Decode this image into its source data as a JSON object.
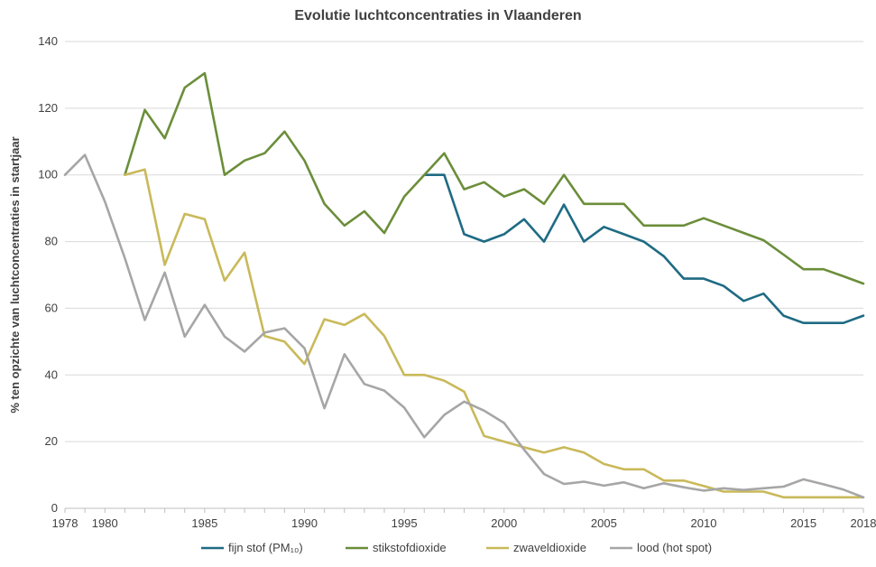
{
  "chart_data": {
    "type": "line",
    "title": "Evolutie luchtconcentraties in Vlaanderen",
    "ylabel": "% ten opzichte van luchtconcentraties in startjaar",
    "xlabel": "",
    "xlim": [
      1978,
      2018
    ],
    "ylim": [
      0,
      140
    ],
    "y_ticks": [
      0,
      20,
      40,
      60,
      80,
      100,
      120,
      140
    ],
    "x_ticks": [
      "1978",
      "1980",
      "1985",
      "1990",
      "1995",
      "2000",
      "2005",
      "2010",
      "2015",
      "2018"
    ],
    "grid": "horizontal",
    "legend_position": "bottom",
    "series": [
      {
        "name": "fijn stof (PM₁₀)",
        "color": "#1f6b83",
        "points": [
          [
            1996,
            100
          ],
          [
            1997,
            100
          ],
          [
            1998,
            82.2
          ],
          [
            1999,
            80
          ],
          [
            2000,
            82.2
          ],
          [
            2001,
            86.7
          ],
          [
            2002,
            80
          ],
          [
            2003,
            91.1
          ],
          [
            2004,
            80
          ],
          [
            2005,
            84.4
          ],
          [
            2006,
            82.2
          ],
          [
            2007,
            80
          ],
          [
            2008,
            75.6
          ],
          [
            2009,
            68.9
          ],
          [
            2010,
            68.9
          ],
          [
            2011,
            66.7
          ],
          [
            2012,
            62.2
          ],
          [
            2013,
            64.4
          ],
          [
            2014,
            57.8
          ],
          [
            2015,
            55.6
          ],
          [
            2016,
            55.6
          ],
          [
            2017,
            55.6
          ],
          [
            2018,
            57.8
          ]
        ]
      },
      {
        "name": "stikstofdioxide",
        "color": "#6b8e3a",
        "points": [
          [
            1981,
            100
          ],
          [
            1982,
            119.5
          ],
          [
            1983,
            111
          ],
          [
            1984,
            126.2
          ],
          [
            1985,
            130.5
          ],
          [
            1986,
            100
          ],
          [
            1987,
            104.3
          ],
          [
            1988,
            106.5
          ],
          [
            1989,
            113
          ],
          [
            1990,
            104.3
          ],
          [
            1991,
            91.3
          ],
          [
            1992,
            84.8
          ],
          [
            1993,
            89.1
          ],
          [
            1994,
            82.6
          ],
          [
            1995,
            93.5
          ],
          [
            1996,
            100
          ],
          [
            1997,
            106.5
          ],
          [
            1998,
            95.7
          ],
          [
            1999,
            97.8
          ],
          [
            2000,
            93.5
          ],
          [
            2001,
            95.7
          ],
          [
            2002,
            91.3
          ],
          [
            2003,
            100
          ],
          [
            2004,
            91.3
          ],
          [
            2005,
            91.3
          ],
          [
            2006,
            91.3
          ],
          [
            2007,
            84.8
          ],
          [
            2008,
            84.8
          ],
          [
            2009,
            84.8
          ],
          [
            2010,
            87
          ],
          [
            2011,
            84.8
          ],
          [
            2012,
            82.6
          ],
          [
            2013,
            80.4
          ],
          [
            2014,
            76.1
          ],
          [
            2015,
            71.7
          ],
          [
            2016,
            71.7
          ],
          [
            2017,
            69.6
          ],
          [
            2018,
            67.4
          ]
        ]
      },
      {
        "name": "zwaveldioxide",
        "color": "#c9b95a",
        "points": [
          [
            1981,
            100
          ],
          [
            1982,
            101.6
          ],
          [
            1983,
            73
          ],
          [
            1984,
            88.3
          ],
          [
            1985,
            86.7
          ],
          [
            1986,
            68.3
          ],
          [
            1987,
            76.7
          ],
          [
            1988,
            51.7
          ],
          [
            1989,
            50
          ],
          [
            1990,
            43.3
          ],
          [
            1991,
            56.7
          ],
          [
            1992,
            55
          ],
          [
            1993,
            58.3
          ],
          [
            1994,
            51.7
          ],
          [
            1995,
            40
          ],
          [
            1996,
            40
          ],
          [
            1997,
            38.3
          ],
          [
            1998,
            35
          ],
          [
            1999,
            21.7
          ],
          [
            2000,
            20
          ],
          [
            2001,
            18.3
          ],
          [
            2002,
            16.7
          ],
          [
            2003,
            18.3
          ],
          [
            2004,
            16.7
          ],
          [
            2005,
            13.3
          ],
          [
            2006,
            11.7
          ],
          [
            2007,
            11.7
          ],
          [
            2008,
            8.3
          ],
          [
            2009,
            8.3
          ],
          [
            2010,
            6.7
          ],
          [
            2011,
            5
          ],
          [
            2012,
            5
          ],
          [
            2013,
            5
          ],
          [
            2014,
            3.3
          ],
          [
            2015,
            3.3
          ],
          [
            2016,
            3.3
          ],
          [
            2017,
            3.3
          ],
          [
            2018,
            3.3
          ]
        ]
      },
      {
        "name": "lood (hot spot)",
        "color": "#a6a6a6",
        "points": [
          [
            1978,
            100
          ],
          [
            1979,
            106
          ],
          [
            1980,
            92
          ],
          [
            1981,
            75
          ],
          [
            1982,
            56.5
          ],
          [
            1983,
            70.7
          ],
          [
            1984,
            51.5
          ],
          [
            1985,
            61
          ],
          [
            1986,
            51.5
          ],
          [
            1987,
            47
          ],
          [
            1988,
            52.7
          ],
          [
            1989,
            54
          ],
          [
            1990,
            48
          ],
          [
            1991,
            30
          ],
          [
            1992,
            46.2
          ],
          [
            1993,
            37.3
          ],
          [
            1994,
            35.3
          ],
          [
            1995,
            30.2
          ],
          [
            1996,
            21.3
          ],
          [
            1997,
            28
          ],
          [
            1998,
            32
          ],
          [
            1999,
            29.3
          ],
          [
            2000,
            25.6
          ],
          [
            2001,
            17.6
          ],
          [
            2002,
            10.3
          ],
          [
            2003,
            7.3
          ],
          [
            2004,
            8
          ],
          [
            2005,
            6.8
          ],
          [
            2006,
            7.8
          ],
          [
            2007,
            6
          ],
          [
            2008,
            7.5
          ],
          [
            2009,
            6.3
          ],
          [
            2010,
            5.3
          ],
          [
            2011,
            6
          ],
          [
            2012,
            5.5
          ],
          [
            2013,
            6
          ],
          [
            2014,
            6.5
          ],
          [
            2015,
            8.7
          ],
          [
            2016,
            7.2
          ],
          [
            2017,
            5.6
          ],
          [
            2018,
            3.3
          ]
        ]
      }
    ]
  }
}
